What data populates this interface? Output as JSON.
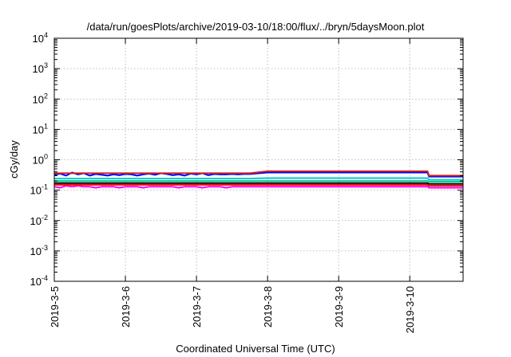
{
  "chart_data": {
    "type": "line",
    "title": "/data/run/goesPlots/archive/2019-03-10/18:00/flux/../bryn/5daysMoon.plot",
    "xlabel": "Coordinated Universal Time (UTC)",
    "ylabel": "cGy/day",
    "yscale": "log",
    "ylim": [
      0.0001,
      10000
    ],
    "yticks": [
      {
        "value": 0.0001,
        "base": "10",
        "exp": "-4"
      },
      {
        "value": 0.001,
        "base": "10",
        "exp": "-3"
      },
      {
        "value": 0.01,
        "base": "10",
        "exp": "-2"
      },
      {
        "value": 0.1,
        "base": "10",
        "exp": "-1"
      },
      {
        "value": 1,
        "base": "10",
        "exp": "0"
      },
      {
        "value": 10,
        "base": "10",
        "exp": "1"
      },
      {
        "value": 100,
        "base": "10",
        "exp": "2"
      },
      {
        "value": 1000,
        "base": "10",
        "exp": "3"
      },
      {
        "value": 10000,
        "base": "10",
        "exp": "4"
      }
    ],
    "xlim": [
      "2019-03-05 00:00",
      "2019-03-10 18:00"
    ],
    "xticks": [
      "2019-3-5",
      "2019-3-6",
      "2019-3-7",
      "2019-3-8",
      "2019-3-9",
      "2019-3-10"
    ],
    "grid": true,
    "legend": "none",
    "series": [
      {
        "color": "#ff00ff",
        "x": [
          "2019-03-05 00:00",
          "2019-03-05 02:00",
          "2019-03-05 04:00",
          "2019-03-05 06:00",
          "2019-03-05 08:00",
          "2019-03-05 10:00",
          "2019-03-05 12:00",
          "2019-03-05 14:00",
          "2019-03-05 16:00",
          "2019-03-05 18:00",
          "2019-03-05 20:00",
          "2019-03-05 22:00",
          "2019-03-06 00:00",
          "2019-03-06 02:00",
          "2019-03-06 04:00",
          "2019-03-06 06:00",
          "2019-03-06 08:00",
          "2019-03-06 10:00",
          "2019-03-06 12:00",
          "2019-03-06 14:00",
          "2019-03-06 16:00",
          "2019-03-06 18:00",
          "2019-03-06 20:00",
          "2019-03-06 22:00",
          "2019-03-07 00:00",
          "2019-03-07 02:00",
          "2019-03-07 04:00",
          "2019-03-07 06:00",
          "2019-03-07 08:00",
          "2019-03-07 10:00",
          "2019-03-07 12:00",
          "2019-03-07 14:00",
          "2019-03-07 16:00",
          "2019-03-07 18:00",
          "2019-03-08 00:00",
          "2019-03-09 00:00",
          "2019-03-10 00:00",
          "2019-03-10 06:00",
          "2019-03-10 06:30",
          "2019-03-10 12:00",
          "2019-03-10 18:00"
        ],
        "y": [
          0.13,
          0.12,
          0.14,
          0.13,
          0.14,
          0.13,
          0.13,
          0.12,
          0.13,
          0.13,
          0.13,
          0.12,
          0.13,
          0.13,
          0.13,
          0.12,
          0.13,
          0.13,
          0.13,
          0.13,
          0.13,
          0.12,
          0.13,
          0.13,
          0.13,
          0.12,
          0.13,
          0.13,
          0.13,
          0.12,
          0.13,
          0.13,
          0.13,
          0.13,
          0.13,
          0.13,
          0.13,
          0.13,
          0.12,
          0.12,
          0.12
        ]
      },
      {
        "color": "#ff0000",
        "x": [
          "2019-03-05 00:00",
          "2019-03-05 12:00",
          "2019-03-06 00:00",
          "2019-03-06 12:00",
          "2019-03-07 00:00",
          "2019-03-07 12:00",
          "2019-03-07 18:00",
          "2019-03-08 00:00",
          "2019-03-09 00:00",
          "2019-03-10 00:00",
          "2019-03-10 06:00",
          "2019-03-10 06:30",
          "2019-03-10 18:00"
        ],
        "y": [
          0.15,
          0.15,
          0.15,
          0.15,
          0.15,
          0.15,
          0.15,
          0.15,
          0.15,
          0.15,
          0.15,
          0.14,
          0.14
        ]
      },
      {
        "color": "#000000",
        "x": [
          "2019-03-05 00:00",
          "2019-03-05 12:00",
          "2019-03-06 00:00",
          "2019-03-06 12:00",
          "2019-03-07 00:00",
          "2019-03-07 12:00",
          "2019-03-07 18:00",
          "2019-03-08 00:00",
          "2019-03-09 00:00",
          "2019-03-10 00:00",
          "2019-03-10 06:00",
          "2019-03-10 06:30",
          "2019-03-10 18:00"
        ],
        "y": [
          0.17,
          0.17,
          0.17,
          0.17,
          0.17,
          0.17,
          0.17,
          0.17,
          0.17,
          0.17,
          0.17,
          0.16,
          0.16
        ]
      },
      {
        "color": "#00cc88",
        "x": [
          "2019-03-05 00:00",
          "2019-03-05 12:00",
          "2019-03-06 00:00",
          "2019-03-06 12:00",
          "2019-03-07 00:00",
          "2019-03-07 12:00",
          "2019-03-07 18:00",
          "2019-03-08 00:00",
          "2019-03-09 00:00",
          "2019-03-10 00:00",
          "2019-03-10 06:00",
          "2019-03-10 06:30",
          "2019-03-10 18:00"
        ],
        "y": [
          0.2,
          0.2,
          0.2,
          0.2,
          0.2,
          0.2,
          0.2,
          0.2,
          0.2,
          0.2,
          0.2,
          0.19,
          0.19
        ]
      },
      {
        "color": "#00cccc",
        "x": [
          "2019-03-05 00:00",
          "2019-03-05 12:00",
          "2019-03-06 00:00",
          "2019-03-06 12:00",
          "2019-03-07 00:00",
          "2019-03-07 12:00",
          "2019-03-07 18:00",
          "2019-03-08 00:00",
          "2019-03-09 00:00",
          "2019-03-10 00:00",
          "2019-03-10 06:00",
          "2019-03-10 06:30",
          "2019-03-10 18:00"
        ],
        "y": [
          0.24,
          0.24,
          0.24,
          0.24,
          0.24,
          0.24,
          0.24,
          0.25,
          0.25,
          0.25,
          0.25,
          0.22,
          0.22
        ]
      },
      {
        "color": "#0000ff",
        "x": [
          "2019-03-05 00:00",
          "2019-03-05 02:00",
          "2019-03-05 04:00",
          "2019-03-05 06:00",
          "2019-03-05 08:00",
          "2019-03-05 10:00",
          "2019-03-05 12:00",
          "2019-03-05 14:00",
          "2019-03-05 16:00",
          "2019-03-05 18:00",
          "2019-03-05 20:00",
          "2019-03-05 22:00",
          "2019-03-06 00:00",
          "2019-03-06 02:00",
          "2019-03-06 04:00",
          "2019-03-06 06:00",
          "2019-03-06 08:00",
          "2019-03-06 10:00",
          "2019-03-06 12:00",
          "2019-03-06 14:00",
          "2019-03-06 16:00",
          "2019-03-06 18:00",
          "2019-03-06 20:00",
          "2019-03-06 22:00",
          "2019-03-07 00:00",
          "2019-03-07 02:00",
          "2019-03-07 04:00",
          "2019-03-07 06:00",
          "2019-03-07 08:00",
          "2019-03-07 10:00",
          "2019-03-07 12:00",
          "2019-03-07 14:00",
          "2019-03-07 16:00",
          "2019-03-07 18:00",
          "2019-03-08 00:00",
          "2019-03-09 00:00",
          "2019-03-10 00:00",
          "2019-03-10 06:00",
          "2019-03-10 06:30",
          "2019-03-10 12:00",
          "2019-03-10 18:00"
        ],
        "y": [
          0.32,
          0.35,
          0.3,
          0.38,
          0.33,
          0.36,
          0.3,
          0.34,
          0.32,
          0.3,
          0.33,
          0.31,
          0.34,
          0.33,
          0.3,
          0.33,
          0.35,
          0.32,
          0.36,
          0.34,
          0.31,
          0.33,
          0.3,
          0.35,
          0.33,
          0.36,
          0.31,
          0.34,
          0.33,
          0.33,
          0.34,
          0.33,
          0.34,
          0.34,
          0.38,
          0.38,
          0.38,
          0.38,
          0.28,
          0.28,
          0.28
        ]
      },
      {
        "color": "#cc2222",
        "x": [
          "2019-03-05 00:00",
          "2019-03-05 12:00",
          "2019-03-06 00:00",
          "2019-03-06 12:00",
          "2019-03-07 00:00",
          "2019-03-07 12:00",
          "2019-03-07 18:00",
          "2019-03-08 00:00",
          "2019-03-09 00:00",
          "2019-03-10 00:00",
          "2019-03-10 06:00",
          "2019-03-10 06:30",
          "2019-03-10 18:00"
        ],
        "y": [
          0.36,
          0.36,
          0.36,
          0.36,
          0.36,
          0.36,
          0.36,
          0.42,
          0.42,
          0.42,
          0.42,
          0.3,
          0.3
        ]
      }
    ]
  }
}
